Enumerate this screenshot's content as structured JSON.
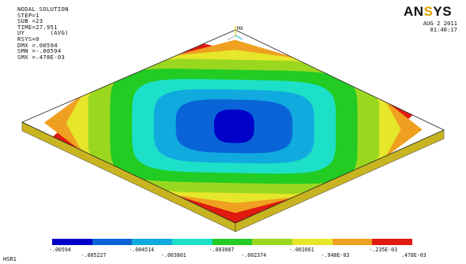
{
  "header": {
    "lines": [
      "NODAL SOLUTION",
      "",
      "STEP=1",
      "SUB =23",
      "TIME=27.951",
      "UY       (AVG)",
      "RSYS=0",
      "DMX =.00594",
      "SMN =-.00594",
      "SMX =.478E-03"
    ]
  },
  "logo": {
    "text_main": "AN",
    "text_accent": "S",
    "text_end": "YS"
  },
  "date": {
    "line1": "AUG  2 2011",
    "line2": "01:40:17"
  },
  "triad": {
    "label": "MX"
  },
  "legend": {
    "colors": [
      "#0000c8",
      "#0a64d8",
      "#10aadf",
      "#1ce0c8",
      "#22cc22",
      "#9ad820",
      "#e6e62a",
      "#f0a020",
      "#e01a10"
    ],
    "labels_lower": [
      "-.00594",
      "-.004514",
      "-.003087",
      "-.001661",
      "-.235E-03"
    ],
    "labels_upper": [
      "-.005227",
      "-.003801",
      "-.002374",
      "-.948E-03",
      ".478E-03"
    ]
  },
  "footer": {
    "label": "HSR1"
  },
  "contour": {
    "bands": [
      "#e01a10",
      "#f0a020",
      "#e6e62a",
      "#9ad820",
      "#22cc22",
      "#1ce0c8",
      "#10aadf",
      "#0a64d8",
      "#0000c8"
    ]
  }
}
